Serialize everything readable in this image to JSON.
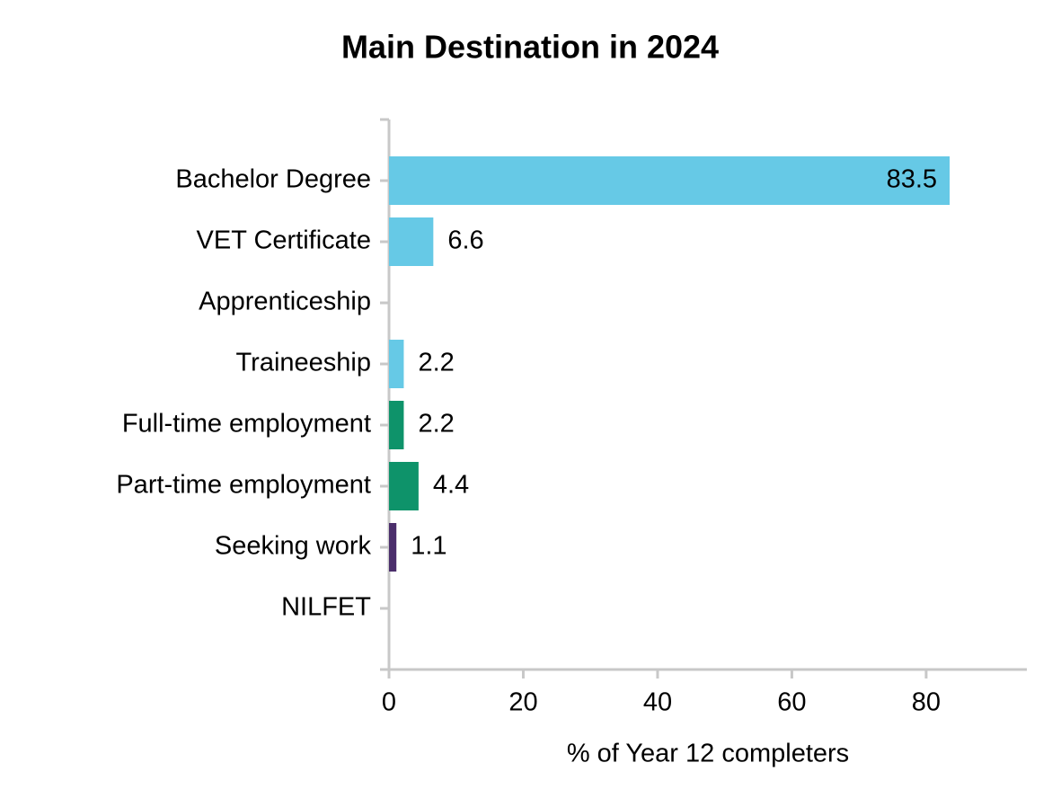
{
  "chart_data": {
    "type": "barh",
    "title": "Main Destination in 2024",
    "x_label": "% of Year 12 completers",
    "categories": [
      "Bachelor Degree",
      "VET Certificate",
      "Apprenticeship",
      "Traineeship",
      "Full-time employment",
      "Part-time employment",
      "Seeking work",
      "NILFET"
    ],
    "values": [
      83.5,
      6.6,
      null,
      2.2,
      2.2,
      4.4,
      1.1,
      null
    ],
    "colors": [
      "#66c9e6",
      "#66c9e6",
      "#66c9e6",
      "#66c9e6",
      "#0e936a",
      "#0e936a",
      "#4b2e6b",
      "#4b2e6b"
    ],
    "xlim": [
      0,
      95
    ],
    "xticks": [
      0,
      20,
      40,
      60,
      80
    ],
    "grid": false
  }
}
